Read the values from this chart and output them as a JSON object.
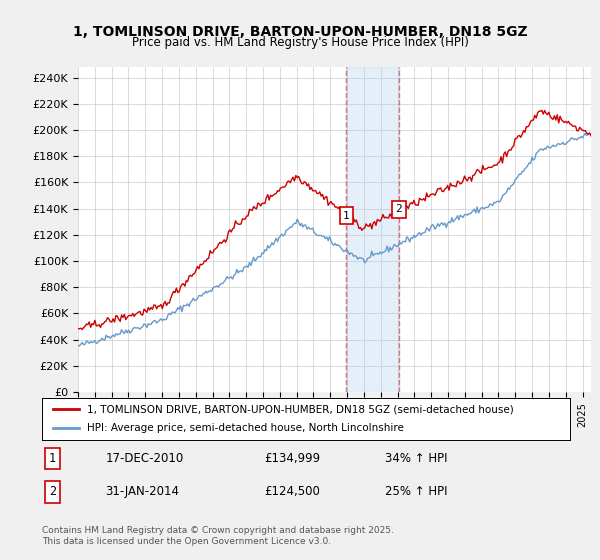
{
  "title": "1, TOMLINSON DRIVE, BARTON-UPON-HUMBER, DN18 5GZ",
  "subtitle": "Price paid vs. HM Land Registry's House Price Index (HPI)",
  "ylabel_ticks": [
    "£0",
    "£20K",
    "£40K",
    "£60K",
    "£80K",
    "£100K",
    "£120K",
    "£140K",
    "£160K",
    "£180K",
    "£200K",
    "£220K",
    "£240K"
  ],
  "ytick_values": [
    0,
    20000,
    40000,
    60000,
    80000,
    100000,
    120000,
    140000,
    160000,
    180000,
    200000,
    220000,
    240000
  ],
  "ylim": [
    0,
    248000
  ],
  "xlim_start": 1995.0,
  "xlim_end": 2025.5,
  "red_line_color": "#cc0000",
  "blue_line_color": "#6699cc",
  "vline_color": "#cc0000",
  "vline_alpha": 0.5,
  "shade_color": "#aaccee",
  "shade_alpha": 0.3,
  "transaction1_x": 2010.96,
  "transaction2_x": 2014.08,
  "transaction1_price": 134999,
  "transaction2_price": 124500,
  "transaction1_label": "1",
  "transaction2_label": "2",
  "transaction1_date": "17-DEC-2010",
  "transaction2_date": "31-JAN-2014",
  "transaction1_hpi": "34% ↑ HPI",
  "transaction2_hpi": "25% ↑ HPI",
  "legend_red": "1, TOMLINSON DRIVE, BARTON-UPON-HUMBER, DN18 5GZ (semi-detached house)",
  "legend_blue": "HPI: Average price, semi-detached house, North Lincolnshire",
  "footer": "Contains HM Land Registry data © Crown copyright and database right 2025.\nThis data is licensed under the Open Government Licence v3.0.",
  "bg_color": "#f0f0f0",
  "plot_bg_color": "#ffffff",
  "grid_color": "#cccccc"
}
